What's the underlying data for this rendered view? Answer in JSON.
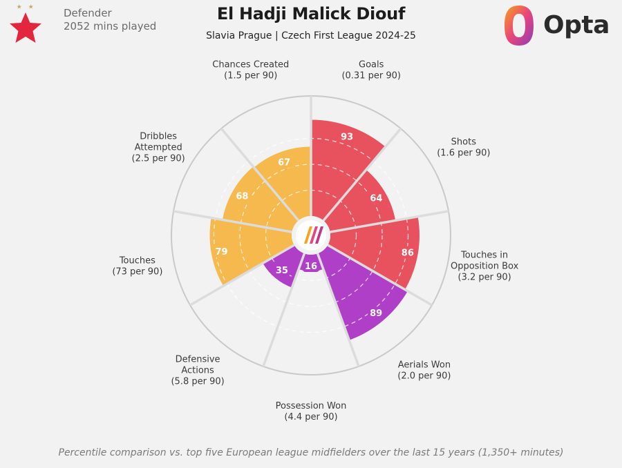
{
  "header": {
    "position": "Defender",
    "minutes": "2052 mins played",
    "player_name": "El Hadji Malick Diouf",
    "subtitle": "Slavia Prague | Czech First League 2024-25",
    "brand": "Opta",
    "club_badge_icon": "slavia-star-icon",
    "brand_icon": "opta-logo-icon"
  },
  "footnote": "Percentile comparison vs. top five European league midfielders over the last 15 years (1,350+ minutes)",
  "colors": {
    "attacking": "#e8525f",
    "defending": "#b03fc8",
    "possession": "#f5b94e",
    "background": "#f3f2f2"
  },
  "chart_data": {
    "type": "radar",
    "scale": "percentile",
    "rlim": [
      0,
      100
    ],
    "segments": [
      {
        "label": [
          "Goals",
          "(0.31 per 90)"
        ],
        "value": 93,
        "group": "attacking"
      },
      {
        "label": [
          "Shots",
          "(1.6 per 90)"
        ],
        "value": 64,
        "group": "attacking"
      },
      {
        "label": [
          "Touches in",
          "Opposition Box",
          "(3.2 per 90)"
        ],
        "value": 86,
        "group": "attacking"
      },
      {
        "label": [
          "Aerials Won",
          "(2.0 per 90)"
        ],
        "value": 89,
        "group": "defending"
      },
      {
        "label": [
          "Possession Won",
          "(4.4 per 90)"
        ],
        "value": 16,
        "group": "defending"
      },
      {
        "label": [
          "Defensive",
          "Actions",
          "(5.8 per 90)"
        ],
        "value": 35,
        "group": "defending"
      },
      {
        "label": [
          "Touches",
          "(73 per 90)"
        ],
        "value": 79,
        "group": "possession"
      },
      {
        "label": [
          "Dribbles",
          "Attempted",
          "(2.5 per 90)"
        ],
        "value": 68,
        "group": "possession"
      },
      {
        "label": [
          "Chances Created",
          "(1.5 per 90)"
        ],
        "value": 67,
        "group": "possession"
      }
    ]
  }
}
